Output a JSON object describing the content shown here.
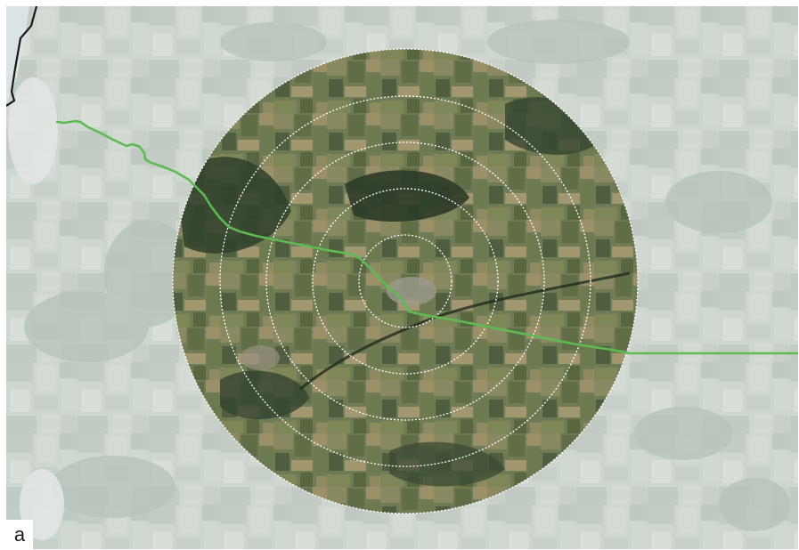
{
  "figure": {
    "panel_label": "a"
  },
  "map": {
    "base_layer": "satellite-imagery",
    "context_opacity": "faded",
    "study_area_shape": "circle",
    "ring_count": 5,
    "colors": {
      "route": "#5dbb52",
      "rings": "#ffffff",
      "boundary": "#1a1a1a",
      "fade_overlay": "#e6ebe7"
    }
  }
}
